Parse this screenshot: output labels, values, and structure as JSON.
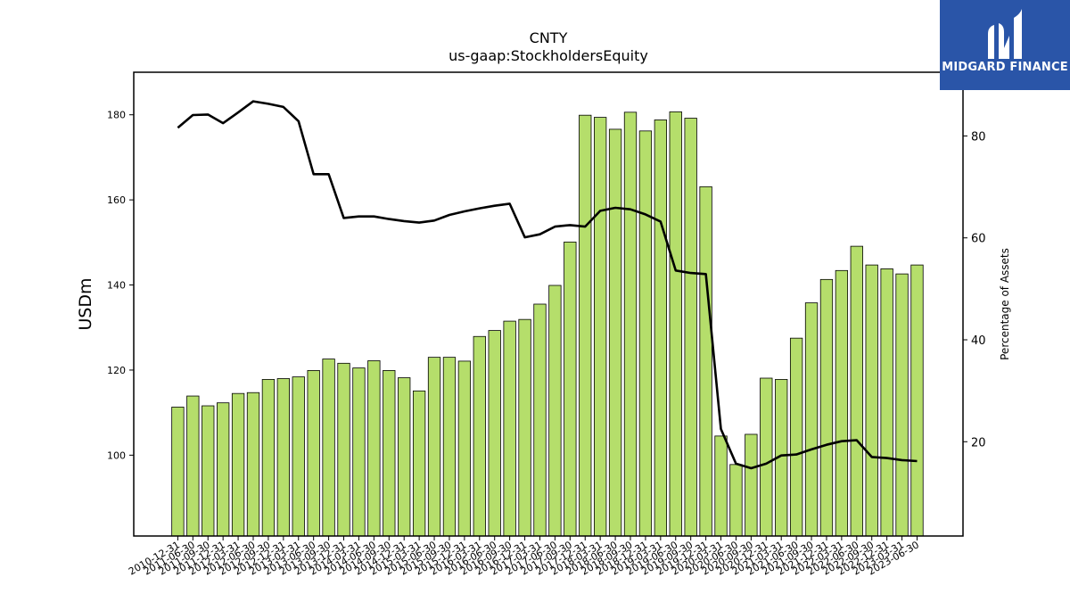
{
  "brand": {
    "name": "MIDGARD FINANCE",
    "color": "#2a55a8",
    "icon": "midgard-logo-icon"
  },
  "chart_data": {
    "type": "bar",
    "title": "CNTY",
    "subtitle": "us-gaap:StockholdersEquity",
    "ylabel": "USDm",
    "y2label": "Percentage of Assets",
    "ylim": [
      81,
      190
    ],
    "y2lim": [
      1.5,
      92.5
    ],
    "yticks": [
      100,
      120,
      140,
      160,
      180
    ],
    "y2ticks": [
      20,
      40,
      60,
      80
    ],
    "bar_color": "#b5de6b",
    "line_color": "#000000",
    "grid": false,
    "legend": "none",
    "categories": [
      "2010-12-31",
      "2011-06-30",
      "2011-09-30",
      "2011-12-31",
      "2012-03-31",
      "2012-06-30",
      "2012-09-30",
      "2012-12-31",
      "2013-03-31",
      "2013-06-30",
      "2013-09-30",
      "2013-12-31",
      "2014-03-31",
      "2014-06-30",
      "2014-09-30",
      "2014-12-31",
      "2015-03-31",
      "2015-06-30",
      "2015-09-30",
      "2015-12-31",
      "2016-03-31",
      "2016-06-30",
      "2016-09-30",
      "2016-12-31",
      "2017-03-31",
      "2017-06-30",
      "2017-09-30",
      "2017-12-31",
      "2018-03-31",
      "2018-06-30",
      "2018-09-30",
      "2018-12-31",
      "2019-03-31",
      "2019-06-30",
      "2019-09-30",
      "2019-12-31",
      "2020-03-31",
      "2020-06-30",
      "2020-09-30",
      "2020-12-31",
      "2021-03-31",
      "2021-06-30",
      "2021-09-30",
      "2021-12-31",
      "2022-03-31",
      "2022-06-30",
      "2022-09-30",
      "2022-12-31",
      "2023-03-31",
      "2023-06-30"
    ],
    "tick_labels": [
      "2010-12-31",
      "2011-06-30",
      "2011-09-30",
      "2011-12-31",
      "2012-03-31",
      "2012-06-30",
      "2012-09-30",
      "2012-12-31",
      "2013-03-31",
      "2013-06-30",
      "2013-09-30",
      "2013-12-31",
      "2014-03-31",
      "2014-06-30",
      "2014-09-30",
      "2014-12-31",
      "2015-03-31",
      "2015-06-30",
      "2015-09-30",
      "2015-12-31",
      "2016-03-31",
      "2016-06-30",
      "2016-09-30",
      "2016-12-31",
      "2017-03-31",
      "2017-06-30",
      "2017-09-30",
      "2017-12-31",
      "2018-03-31",
      "2018-06-30",
      "2018-09-30",
      "2018-12-31",
      "2019-03-31",
      "2019-06-30",
      "2019-09-30",
      "2019-12-31",
      "2020-03-31",
      "2020-06-30",
      "2020-09-30",
      "2020-12-31",
      "2021-03-31",
      "2021-06-30",
      "2021-09-30",
      "2021-12-31",
      "2022-03-31",
      "2022-06-30",
      "2022-09-30",
      "2022-12-31",
      "2023-03-31",
      "2023-06-30"
    ],
    "series": [
      {
        "axis": "left",
        "type": "bar",
        "values": [
          111.3,
          113.9,
          111.6,
          112.3,
          114.5,
          114.7,
          117.8,
          118.0,
          118.4,
          119.9,
          122.6,
          121.6,
          120.5,
          122.2,
          119.9,
          118.2,
          115.1,
          123.0,
          123.0,
          122.1,
          127.9,
          129.3,
          131.5,
          131.9,
          135.5,
          139.9,
          150.1,
          179.9,
          179.4,
          176.6,
          180.6,
          176.2,
          178.8,
          180.7,
          179.2,
          163.1,
          104.5,
          97.8,
          104.9,
          118.1,
          117.8,
          127.5,
          135.8,
          141.3,
          143.4,
          149.1,
          144.7,
          143.8,
          142.6,
          144.7
        ]
      },
      {
        "axis": "right",
        "type": "line",
        "values": [
          81.6,
          84.1,
          84.2,
          82.5,
          84.6,
          86.8,
          86.3,
          85.7,
          82.9,
          72.5,
          72.5,
          63.9,
          64.2,
          64.2,
          63.7,
          63.3,
          63.0,
          63.4,
          64.5,
          65.2,
          65.8,
          66.3,
          66.7,
          60.1,
          60.7,
          62.2,
          62.5,
          62.2,
          65.3,
          65.9,
          65.6,
          64.6,
          63.2,
          53.6,
          53.1,
          52.9,
          22.5,
          15.7,
          14.8,
          15.7,
          17.3,
          17.5,
          18.5,
          19.4,
          20.1,
          20.3,
          17.0,
          16.8,
          16.4,
          16.2
        ]
      }
    ]
  }
}
